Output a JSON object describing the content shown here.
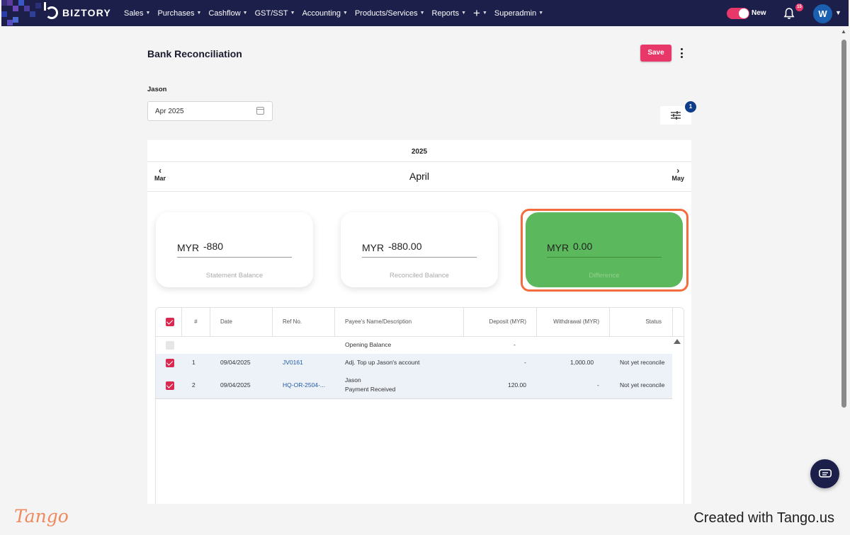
{
  "app": {
    "brand": "BIZTORY",
    "colors": {
      "nav_bg": "#1c1f4a",
      "accent": "#e8386a",
      "difference_green": "#5cb85c",
      "highlight_orange": "#f36c3d",
      "link_blue": "#1f5aa8"
    }
  },
  "nav": {
    "items": [
      {
        "label": "Sales"
      },
      {
        "label": "Purchases"
      },
      {
        "label": "Cashflow"
      },
      {
        "label": "GST/SST"
      },
      {
        "label": "Accounting"
      },
      {
        "label": "Products/Services"
      },
      {
        "label": "Reports"
      },
      {
        "label": "+"
      },
      {
        "label": "Superadmin"
      }
    ],
    "toggle_label": "New",
    "notification_count": "15",
    "avatar_initial": "W"
  },
  "page": {
    "title": "Bank Reconciliation",
    "save_label": "Save",
    "account_label": "Jason",
    "date_value": "Apr 2025",
    "filter_badge": "1"
  },
  "period": {
    "year": "2025",
    "month": "April",
    "prev": "Mar",
    "next": "May"
  },
  "balances": {
    "statement": {
      "currency": "MYR",
      "amount": "-880",
      "caption": "Statement Balance"
    },
    "reconciled": {
      "currency": "MYR",
      "amount": "-880.00",
      "caption": "Reconciled Balance"
    },
    "difference": {
      "currency": "MYR",
      "amount": "0.00",
      "caption": "Difference"
    }
  },
  "table": {
    "headers": {
      "num": "#",
      "date": "Date",
      "ref": "Ref No.",
      "payee": "Payee's Name/Description",
      "deposit": "Deposit (MYR)",
      "withdrawal": "Withdrawal (MYR)",
      "status": "Status"
    },
    "opening": {
      "payee": "Opening Balance",
      "deposit": "-"
    },
    "rows": [
      {
        "num": "1",
        "date": "09/04/2025",
        "ref": "JV0161",
        "payee": "Adj. Top up Jason's account",
        "payee2": "",
        "deposit": "-",
        "withdrawal": "1,000.00",
        "status": "Not yet reconcile"
      },
      {
        "num": "2",
        "date": "09/04/2025",
        "ref": "HQ-OR-2504-...",
        "payee": "Jason",
        "payee2": "Payment Received",
        "deposit": "120.00",
        "withdrawal": "-",
        "status": "Not yet reconcile"
      }
    ]
  },
  "footer": {
    "logo": "Tango",
    "credit": "Created with Tango.us"
  }
}
